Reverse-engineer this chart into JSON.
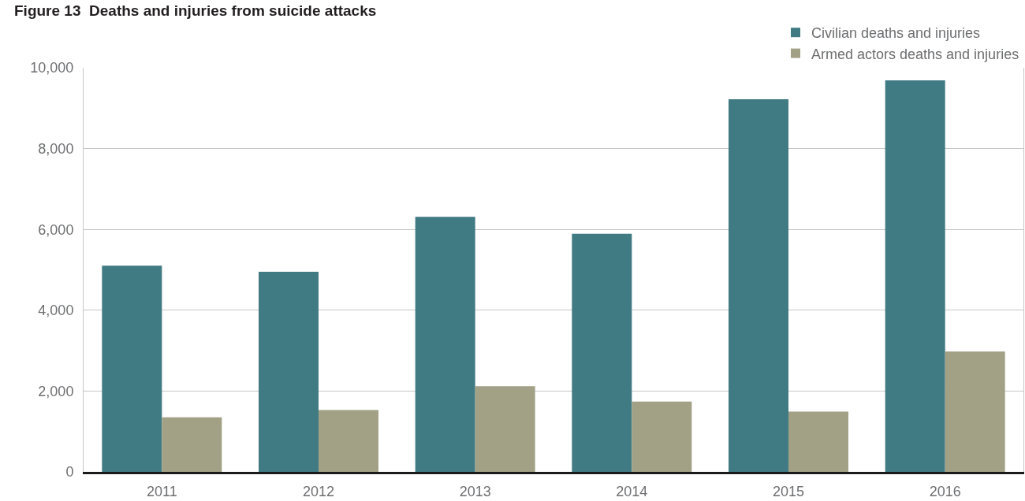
{
  "chart_data": {
    "type": "bar",
    "title": "Figure 13  Deaths and injuries from suicide attacks",
    "categories": [
      "2011",
      "2012",
      "2013",
      "2014",
      "2015",
      "2016"
    ],
    "series": [
      {
        "name": "Civilian deaths and injuries",
        "color": "#407a83",
        "values": [
          5100,
          4950,
          6310,
          5890,
          9220,
          9690
        ]
      },
      {
        "name": "Armed actors deaths and injuries",
        "color": "#a2a186",
        "values": [
          1350,
          1530,
          2120,
          1740,
          1490,
          2980
        ]
      }
    ],
    "ylim": [
      0,
      10000
    ],
    "yticks": [
      0,
      {
        "value": 2000,
        "label": "2,000"
      },
      {
        "value": 4000,
        "label": "4,000"
      },
      {
        "value": 6000,
        "label": "6,000"
      },
      {
        "value": 8000,
        "label": "8,000"
      },
      {
        "value": 10000,
        "label": "10,000"
      }
    ],
    "grid": "y",
    "legend": "top right"
  }
}
